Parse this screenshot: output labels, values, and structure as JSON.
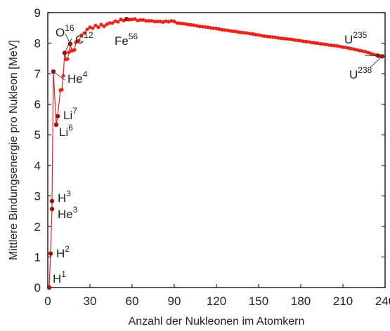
{
  "chart_data": {
    "type": "scatter",
    "title": "",
    "xlabel": "Anzahl der Nukleonen im Atomkern",
    "ylabel": "Mittlere Bindungsenergie pro Nukleon [MeV]",
    "xlim": [
      0,
      240
    ],
    "ylim": [
      0,
      9
    ],
    "x_ticks": [
      "0",
      "30",
      "60",
      "90",
      "120",
      "150",
      "180",
      "210",
      "240"
    ],
    "y_ticks": [
      "0",
      "1",
      "2",
      "3",
      "4",
      "5",
      "6",
      "7",
      "8",
      "9"
    ],
    "grid": false,
    "connected": true,
    "colors": {
      "series": "#e8231c",
      "labeled": "#9b1414",
      "frame": "#222222",
      "leader": "#333333"
    },
    "labeled_points": [
      {
        "symbol": "H",
        "mass": "1",
        "x": 1,
        "y": 0
      },
      {
        "symbol": "H",
        "mass": "2",
        "x": 2,
        "y": 1.11
      },
      {
        "symbol": "H",
        "mass": "3",
        "x": 3,
        "y": 2.83
      },
      {
        "symbol": "He",
        "mass": "3",
        "x": 3,
        "y": 2.57
      },
      {
        "symbol": "He",
        "mass": "4",
        "x": 4,
        "y": 7.07
      },
      {
        "symbol": "Li",
        "mass": "6",
        "x": 6,
        "y": 5.33
      },
      {
        "symbol": "Li",
        "mass": "7",
        "x": 7,
        "y": 5.61
      },
      {
        "symbol": "C",
        "mass": "12",
        "x": 12,
        "y": 7.68
      },
      {
        "symbol": "O",
        "mass": "16",
        "x": 16,
        "y": 7.98
      },
      {
        "symbol": "Fe",
        "mass": "56",
        "x": 56,
        "y": 8.79
      },
      {
        "symbol": "U",
        "mass": "235",
        "x": 235,
        "y": 7.59
      },
      {
        "symbol": "U",
        "mass": "238",
        "x": 238,
        "y": 7.57
      }
    ],
    "points": [
      [
        1,
        0
      ],
      [
        2,
        1.11
      ],
      [
        3,
        2.57
      ],
      [
        3,
        2.83
      ],
      [
        4,
        7.07
      ],
      [
        6,
        5.33
      ],
      [
        7,
        5.61
      ],
      [
        9,
        6.46
      ],
      [
        10,
        6.48
      ],
      [
        11,
        6.93
      ],
      [
        12,
        7.68
      ],
      [
        13,
        7.47
      ],
      [
        14,
        7.48
      ],
      [
        15,
        7.7
      ],
      [
        16,
        7.98
      ],
      [
        17,
        7.75
      ],
      [
        18,
        7.77
      ],
      [
        19,
        7.78
      ],
      [
        20,
        8.03
      ],
      [
        22,
        8.08
      ],
      [
        24,
        8.26
      ],
      [
        26,
        8.33
      ],
      [
        28,
        8.45
      ],
      [
        30,
        8.52
      ],
      [
        32,
        8.49
      ],
      [
        34,
        8.58
      ],
      [
        36,
        8.52
      ],
      [
        38,
        8.61
      ],
      [
        40,
        8.55
      ],
      [
        42,
        8.62
      ],
      [
        44,
        8.66
      ],
      [
        46,
        8.66
      ],
      [
        48,
        8.72
      ],
      [
        50,
        8.7
      ],
      [
        52,
        8.78
      ],
      [
        54,
        8.74
      ],
      [
        56,
        8.79
      ],
      [
        58,
        8.77
      ],
      [
        60,
        8.78
      ],
      [
        62,
        8.79
      ],
      [
        64,
        8.74
      ],
      [
        66,
        8.76
      ],
      [
        68,
        8.76
      ],
      [
        70,
        8.73
      ],
      [
        72,
        8.73
      ],
      [
        74,
        8.73
      ],
      [
        76,
        8.71
      ],
      [
        78,
        8.71
      ],
      [
        80,
        8.71
      ],
      [
        82,
        8.69
      ],
      [
        84,
        8.72
      ],
      [
        86,
        8.7
      ],
      [
        88,
        8.73
      ],
      [
        90,
        8.71
      ],
      [
        92,
        8.66
      ],
      [
        94,
        8.65
      ],
      [
        96,
        8.64
      ],
      [
        98,
        8.63
      ],
      [
        100,
        8.61
      ],
      [
        102,
        8.6
      ],
      [
        104,
        8.59
      ],
      [
        106,
        8.57
      ],
      [
        108,
        8.55
      ],
      [
        110,
        8.54
      ],
      [
        112,
        8.53
      ],
      [
        114,
        8.52
      ],
      [
        116,
        8.5
      ],
      [
        118,
        8.49
      ],
      [
        120,
        8.48
      ],
      [
        122,
        8.46
      ],
      [
        124,
        8.44
      ],
      [
        126,
        8.43
      ],
      [
        128,
        8.42
      ],
      [
        130,
        8.4
      ],
      [
        132,
        8.39
      ],
      [
        134,
        8.38
      ],
      [
        136,
        8.36
      ],
      [
        138,
        8.35
      ],
      [
        140,
        8.34
      ],
      [
        142,
        8.33
      ],
      [
        144,
        8.31
      ],
      [
        146,
        8.3
      ],
      [
        148,
        8.28
      ],
      [
        150,
        8.27
      ],
      [
        152,
        8.25
      ],
      [
        154,
        8.23
      ],
      [
        156,
        8.22
      ],
      [
        158,
        8.21
      ],
      [
        160,
        8.2
      ],
      [
        162,
        8.19
      ],
      [
        164,
        8.17
      ],
      [
        166,
        8.16
      ],
      [
        168,
        8.15
      ],
      [
        170,
        8.14
      ],
      [
        172,
        8.13
      ],
      [
        174,
        8.12
      ],
      [
        176,
        8.1
      ],
      [
        178,
        8.09
      ],
      [
        180,
        8.08
      ],
      [
        182,
        8.06
      ],
      [
        184,
        8.05
      ],
      [
        186,
        8.04
      ],
      [
        188,
        8.02
      ],
      [
        190,
        8.01
      ],
      [
        192,
        8
      ],
      [
        194,
        7.98
      ],
      [
        196,
        7.97
      ],
      [
        198,
        7.96
      ],
      [
        200,
        7.94
      ],
      [
        202,
        7.93
      ],
      [
        204,
        7.92
      ],
      [
        206,
        7.91
      ],
      [
        208,
        7.89
      ],
      [
        210,
        7.87
      ],
      [
        212,
        7.86
      ],
      [
        214,
        7.84
      ],
      [
        216,
        7.82
      ],
      [
        218,
        7.8
      ],
      [
        220,
        7.78
      ],
      [
        222,
        7.76
      ],
      [
        224,
        7.74
      ],
      [
        226,
        7.72
      ],
      [
        228,
        7.69
      ],
      [
        230,
        7.66
      ],
      [
        232,
        7.63
      ],
      [
        234,
        7.61
      ],
      [
        235,
        7.59
      ],
      [
        236,
        7.58
      ],
      [
        238,
        7.57
      ]
    ]
  }
}
